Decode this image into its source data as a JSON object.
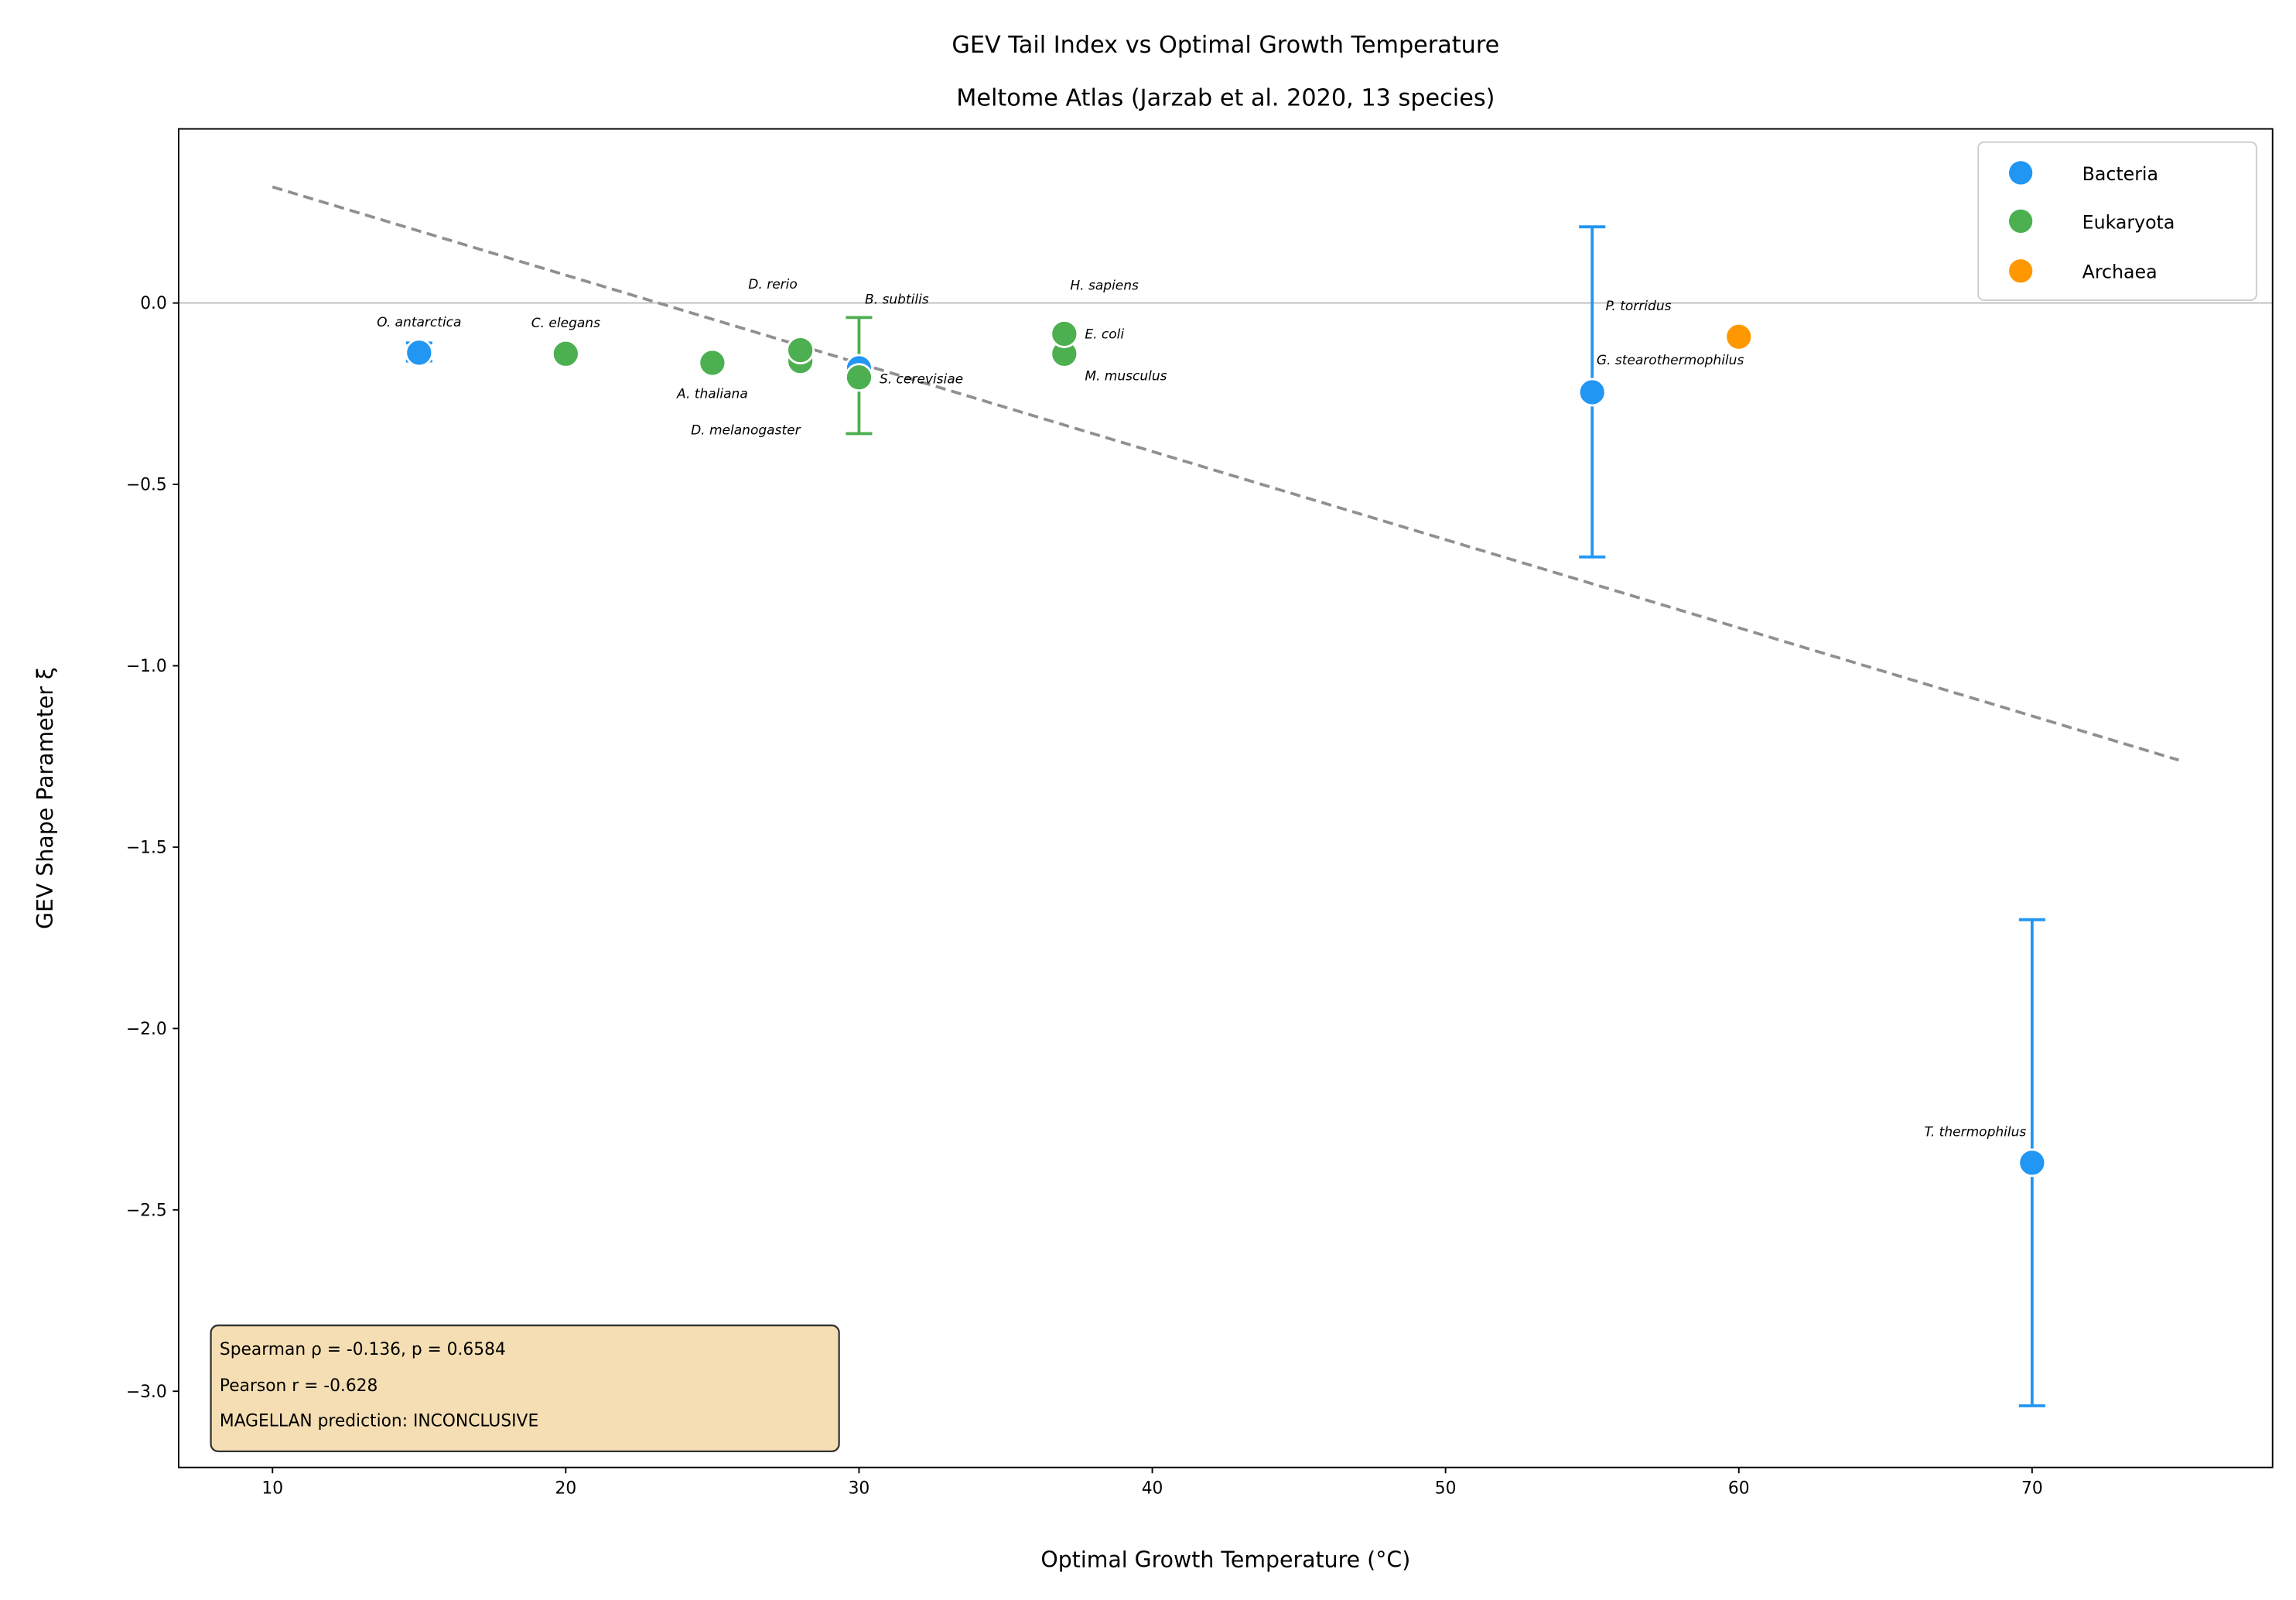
{
  "chart_data": {
    "type": "scatter",
    "title": "GEV Tail Index vs Optimal Growth Temperature",
    "subtitle": "Meltome Atlas (Jarzab et al. 2020, 13 species)",
    "xlabel": "Optimal Growth Temperature (°C)",
    "ylabel": "GEV Shape Parameter ξ",
    "xlim": [
      6.8,
      78.2
    ],
    "ylim": [
      -3.21,
      0.48
    ],
    "xticks": [
      10,
      20,
      30,
      40,
      50,
      60,
      70
    ],
    "xtick_labels": [
      "10",
      "20",
      "30",
      "40",
      "50",
      "60",
      "70"
    ],
    "yticks": [
      0.0,
      -0.5,
      -1.0,
      -1.5,
      -2.0,
      -2.5,
      -3.0
    ],
    "ytick_labels": [
      "0.0",
      "−0.5",
      "−1.0",
      "−1.5",
      "−2.0",
      "−2.5",
      "−3.0"
    ],
    "grid": false,
    "reference_line_y": 0,
    "legend_position": "top-right",
    "series": [
      {
        "name": "Bacteria",
        "color": "#2196F3"
      },
      {
        "name": "Eukaryota",
        "color": "#4CAF50"
      },
      {
        "name": "Archaea",
        "color": "#FF9800"
      }
    ],
    "points": [
      {
        "label": "O. antarctica",
        "group": "Bacteria",
        "x": 15,
        "y": -0.137,
        "err_low": -0.16,
        "err_high": -0.11
      },
      {
        "label": "C. elegans",
        "group": "Eukaryota",
        "x": 20,
        "y": -0.14
      },
      {
        "label": "A. thaliana",
        "group": "Eukaryota",
        "x": 25,
        "y": -0.165
      },
      {
        "label": "D. melanogaster",
        "group": "Eukaryota",
        "x": 28,
        "y": -0.16
      },
      {
        "label": "D. rerio",
        "group": "Eukaryota",
        "x": 28,
        "y": -0.13
      },
      {
        "label": "B. subtilis",
        "group": "Bacteria",
        "x": 30,
        "y": -0.18
      },
      {
        "label": "S. cerevisiae",
        "group": "Eukaryota",
        "x": 30,
        "y": -0.205,
        "err_low": -0.36,
        "err_high": -0.04
      },
      {
        "label": "E. coli",
        "group": "Bacteria",
        "x": 37,
        "y": -0.09
      },
      {
        "label": "M. musculus",
        "group": "Eukaryota",
        "x": 37,
        "y": -0.14
      },
      {
        "label": "H. sapiens",
        "group": "Eukaryota",
        "x": 37,
        "y": -0.085
      },
      {
        "label": "G. stearothermophilus",
        "group": "Bacteria",
        "x": 55,
        "y": -0.246,
        "err_low": -0.7,
        "err_high": 0.21
      },
      {
        "label": "P. torridus",
        "group": "Archaea",
        "x": 60,
        "y": -0.093
      },
      {
        "label": "T. thermophilus",
        "group": "Bacteria",
        "x": 70,
        "y": -2.37,
        "err_low": -3.04,
        "err_high": -1.7
      }
    ],
    "trend_line": {
      "x": [
        10,
        75
      ],
      "y": [
        0.32,
        -1.26
      ],
      "style": "dashed",
      "color": "#909090"
    },
    "annotation_box": {
      "lines": [
        "Spearman ρ = -0.136, p = 0.6584",
        "Pearson r = -0.628",
        "MAGELLAN prediction: INCONCLUSIVE"
      ],
      "background": "#F5DEB3"
    }
  }
}
